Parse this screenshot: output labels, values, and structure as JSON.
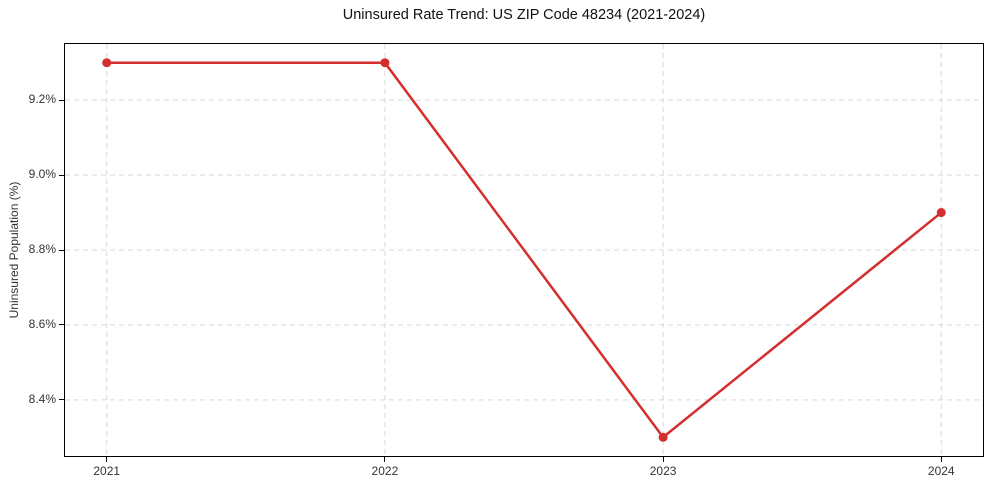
{
  "chart_data": {
    "type": "line",
    "title": "Uninsured Rate Trend: US ZIP Code 48234 (2021-2024)",
    "xlabel": "",
    "ylabel": "Uninsured Population (%)",
    "x": [
      2021,
      2022,
      2023,
      2024
    ],
    "x_ticks": [
      "2021",
      "2022",
      "2023",
      "2024"
    ],
    "values": [
      9.3,
      9.3,
      8.3,
      8.9
    ],
    "y_tick_values": [
      8.4,
      8.6,
      8.8,
      9.0,
      9.2
    ],
    "y_ticks": [
      "8.4%",
      "8.6%",
      "8.8%",
      "9.0%",
      "9.2%"
    ],
    "xlim": [
      2020.85,
      2024.15
    ],
    "ylim": [
      8.25,
      9.35
    ],
    "grid": true,
    "legend": "none",
    "line_color": "#d32f2f",
    "grid_color": "#d9d9d9",
    "spine_color": "#000000",
    "text_color": "#333333"
  }
}
